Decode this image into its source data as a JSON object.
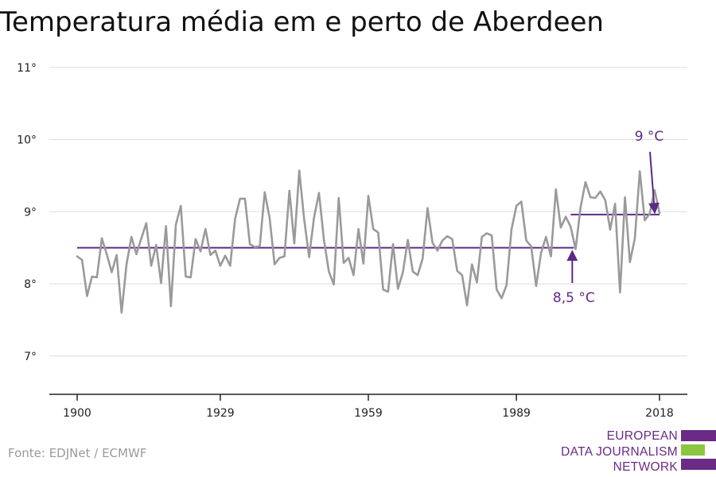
{
  "title": "Temperatura média em e perto de Aberdeen",
  "source": "Fonte: EDJNet / ECMWF",
  "logo": {
    "lines": [
      "EUROPEAN",
      "DATA JOURNALISM",
      "NETWORK"
    ]
  },
  "colors": {
    "series": "#9a9a9a",
    "accent": "#5b2a86",
    "logo_purple": "#6b2a86",
    "logo_green": "#8cc63f",
    "grid": "#dddddd",
    "axis": "#222222"
  },
  "chart_data": {
    "type": "line",
    "title": "Temperatura média em e perto de Aberdeen",
    "xlabel": "",
    "ylabel": "",
    "xlim": [
      1900,
      2018
    ],
    "ylim": [
      6.5,
      11.1
    ],
    "grid": true,
    "y_ticks": [
      7,
      8,
      9,
      10,
      11
    ],
    "y_tick_labels": [
      "7°",
      "8°",
      "9°",
      "10°",
      "11°"
    ],
    "x_ticks": [
      1900,
      1929,
      1959,
      1989,
      2018
    ],
    "x_tick_labels": [
      "1900",
      "1929",
      "1959",
      "1989",
      "2018"
    ],
    "series": [
      {
        "x": [
          1900,
          1901,
          1902,
          1903,
          1904,
          1905,
          1906,
          1907,
          1908,
          1909,
          1910,
          1911,
          1912,
          1913,
          1914,
          1915,
          1916,
          1917,
          1918,
          1919,
          1920,
          1921,
          1922,
          1923,
          1924,
          1925,
          1926,
          1927,
          1928,
          1929,
          1930,
          1931,
          1932,
          1933,
          1934,
          1935,
          1936,
          1937,
          1938,
          1939,
          1940,
          1941,
          1942,
          1943,
          1944,
          1945,
          1946,
          1947,
          1948,
          1949,
          1950,
          1951,
          1952,
          1953,
          1954,
          1955,
          1956,
          1957,
          1958,
          1959,
          1960,
          1961,
          1962,
          1963,
          1964,
          1965,
          1966,
          1967,
          1968,
          1969,
          1970,
          1971,
          1972,
          1973,
          1974,
          1975,
          1976,
          1977,
          1978,
          1979,
          1980,
          1981,
          1982,
          1983,
          1984,
          1985,
          1986,
          1987,
          1988,
          1989,
          1990,
          1991,
          1992,
          1993,
          1994,
          1995,
          1996,
          1997,
          1998,
          1999,
          2000,
          2001,
          2002,
          2003,
          2004,
          2005,
          2006,
          2007,
          2008,
          2009,
          2010,
          2011,
          2012,
          2013,
          2014,
          2015,
          2016,
          2017,
          2018
        ],
        "values": [
          8.38,
          8.33,
          7.83,
          8.1,
          8.09,
          8.63,
          8.41,
          8.16,
          8.4,
          7.6,
          8.27,
          8.65,
          8.41,
          8.63,
          8.84,
          8.25,
          8.54,
          8.01,
          8.8,
          7.69,
          8.82,
          9.08,
          8.1,
          8.09,
          8.62,
          8.45,
          8.76,
          8.4,
          8.46,
          8.25,
          8.39,
          8.25,
          8.9,
          9.18,
          9.18,
          8.55,
          8.51,
          8.52,
          9.27,
          8.91,
          8.27,
          8.36,
          8.38,
          9.29,
          8.56,
          9.57,
          8.89,
          8.37,
          8.92,
          9.26,
          8.61,
          8.17,
          7.99,
          9.19,
          8.29,
          8.36,
          8.12,
          8.76,
          8.28,
          9.22,
          8.76,
          8.71,
          7.92,
          7.89,
          8.55,
          7.93,
          8.16,
          8.61,
          8.17,
          8.12,
          8.35,
          9.05,
          8.57,
          8.46,
          8.6,
          8.66,
          8.62,
          8.18,
          8.12,
          7.7,
          8.27,
          8.02,
          8.65,
          8.7,
          8.67,
          7.92,
          7.8,
          7.98,
          8.75,
          9.08,
          9.14,
          8.6,
          8.52,
          7.97,
          8.43,
          8.65,
          8.38,
          9.31,
          8.78,
          8.93,
          8.79,
          8.48,
          9.06,
          9.41,
          9.2,
          9.19,
          9.28,
          9.16,
          8.75,
          9.11,
          7.88,
          9.2,
          8.3,
          8.63,
          9.56,
          8.88,
          8.97,
          9.3,
          8.98
        ]
      }
    ],
    "reference_lines": [
      {
        "label": "8,5 °C",
        "value": 8.5,
        "x_start": 1900,
        "x_end": 2000
      },
      {
        "label": "9 °C",
        "value": 8.96,
        "x_start": 2000,
        "x_end": 2018
      }
    ]
  }
}
